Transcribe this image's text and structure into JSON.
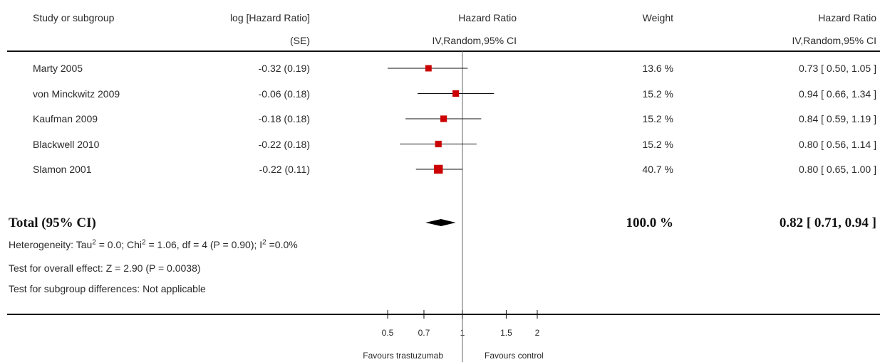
{
  "headers": {
    "study": "Study or subgroup",
    "log_hr_1": "log [Hazard Ratio]",
    "log_hr_2": "(SE)",
    "hr_plot_1": "Hazard Ratio",
    "hr_plot_2": "IV,Random,95% CI",
    "weight": "Weight",
    "hr_ci_1": "Hazard Ratio",
    "hr_ci_2": "IV,Random,95% CI"
  },
  "total": {
    "label": "Total (95% CI)",
    "weight": "100.0 %",
    "hr_ci": "0.82 [ 0.71, 0.94 ]"
  },
  "footnotes": {
    "heterogeneity_a": "Heterogeneity: Tau",
    "heterogeneity_b": " = 0.0; Chi",
    "heterogeneity_c": " = 1.06, df = 4 (P = 0.90); I",
    "heterogeneity_d": " =0.0%",
    "sup2": "2",
    "overall": "Test for overall effect: Z = 2.90 (P = 0.0038)",
    "subgroup": "Test for subgroup differences: Not applicable"
  },
  "axis": {
    "favours_left": "Favours trastuzumab",
    "favours_right": "Favours control"
  },
  "colors": {
    "marker": "#cc0000",
    "diamond": "#000000",
    "line": "#111111"
  },
  "chart_data": {
    "type": "forest",
    "scale": "log",
    "xlim": [
      0.5,
      2
    ],
    "ticks": [
      {
        "value": 0.5,
        "label": "0.5"
      },
      {
        "value": 0.7,
        "label": "0.7"
      },
      {
        "value": 1,
        "label": "1"
      },
      {
        "value": 1.5,
        "label": "1.5"
      },
      {
        "value": 2,
        "label": "2"
      }
    ],
    "studies": [
      {
        "name": "Marty 2005",
        "log_se": "-0.32 (0.19)",
        "hr": 0.73,
        "lo": 0.5,
        "hi": 1.05,
        "weight": "13.6 %",
        "weight_value": 13.6,
        "ci_text": "0.73 [ 0.50, 1.05 ]"
      },
      {
        "name": "von Minckwitz 2009",
        "log_se": "-0.06 (0.18)",
        "hr": 0.94,
        "lo": 0.66,
        "hi": 1.34,
        "weight": "15.2 %",
        "weight_value": 15.2,
        "ci_text": "0.94 [ 0.66, 1.34 ]"
      },
      {
        "name": "Kaufman 2009",
        "log_se": "-0.18 (0.18)",
        "hr": 0.84,
        "lo": 0.59,
        "hi": 1.19,
        "weight": "15.2 %",
        "weight_value": 15.2,
        "ci_text": "0.84 [ 0.59, 1.19 ]"
      },
      {
        "name": "Blackwell 2010",
        "log_se": "-0.22 (0.18)",
        "hr": 0.8,
        "lo": 0.56,
        "hi": 1.14,
        "weight": "15.2 %",
        "weight_value": 15.2,
        "ci_text": "0.80 [ 0.56, 1.14 ]"
      },
      {
        "name": "Slamon 2001",
        "log_se": "-0.22 (0.11)",
        "hr": 0.8,
        "lo": 0.65,
        "hi": 1.0,
        "weight": "40.7 %",
        "weight_value": 40.7,
        "ci_text": "0.80 [ 0.65, 1.00 ]"
      }
    ],
    "pooled": {
      "hr": 0.82,
      "lo": 0.71,
      "hi": 0.94
    }
  }
}
